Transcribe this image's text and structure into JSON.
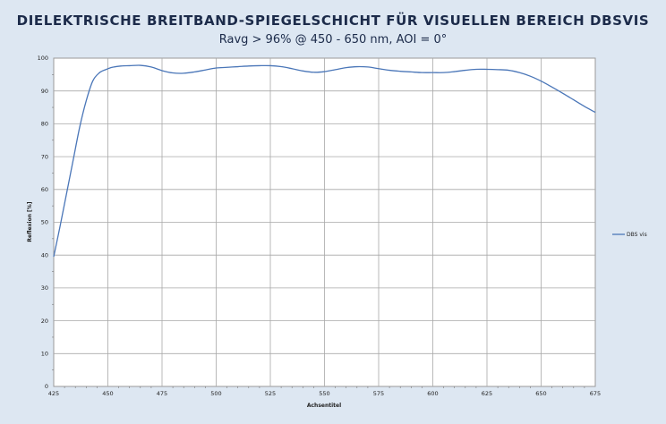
{
  "chart_data": {
    "type": "line",
    "title": "DIELEKTRISCHE BREITBAND-SPIEGELSCHICHT FÜR VISUELLEN BEREICH DBSVIS",
    "subtitle": "Ravg > 96% @ 450 - 650 nm, AOI = 0°",
    "xlabel": "Achsentitel",
    "ylabel": "Reflexion [%]",
    "xlim": [
      425,
      675
    ],
    "ylim": [
      0,
      100
    ],
    "xticks": [
      425,
      450,
      475,
      500,
      525,
      550,
      575,
      600,
      625,
      650,
      675
    ],
    "yticks": [
      0,
      10,
      20,
      30,
      40,
      50,
      60,
      70,
      80,
      90,
      100
    ],
    "grid": true,
    "legend": "right",
    "series": [
      {
        "name": "DBS vis",
        "color": "#4a76b8",
        "x": [
          425,
          428,
          431,
          434,
          437,
          440,
          443,
          446,
          449,
          452,
          456,
          460,
          465,
          470,
          475,
          480,
          485,
          490,
          495,
          500,
          505,
          510,
          515,
          520,
          525,
          530,
          535,
          540,
          545,
          550,
          555,
          560,
          565,
          570,
          575,
          580,
          585,
          590,
          595,
          600,
          605,
          610,
          615,
          620,
          625,
          630,
          635,
          640,
          645,
          650,
          655,
          660,
          665,
          670,
          675
        ],
        "y": [
          39.5,
          49,
          59,
          69,
          79,
          87,
          93,
          95.5,
          96.5,
          97.2,
          97.6,
          97.7,
          97.8,
          97.3,
          96.2,
          95.5,
          95.4,
          95.8,
          96.4,
          97.0,
          97.2,
          97.4,
          97.6,
          97.7,
          97.7,
          97.4,
          96.8,
          96.1,
          95.7,
          95.9,
          96.5,
          97.1,
          97.4,
          97.3,
          96.8,
          96.3,
          96.0,
          95.8,
          95.6,
          95.6,
          95.6,
          95.9,
          96.3,
          96.6,
          96.6,
          96.5,
          96.3,
          95.6,
          94.5,
          93.0,
          91.2,
          89.3,
          87.3,
          85.3,
          83.5
        ]
      }
    ]
  }
}
